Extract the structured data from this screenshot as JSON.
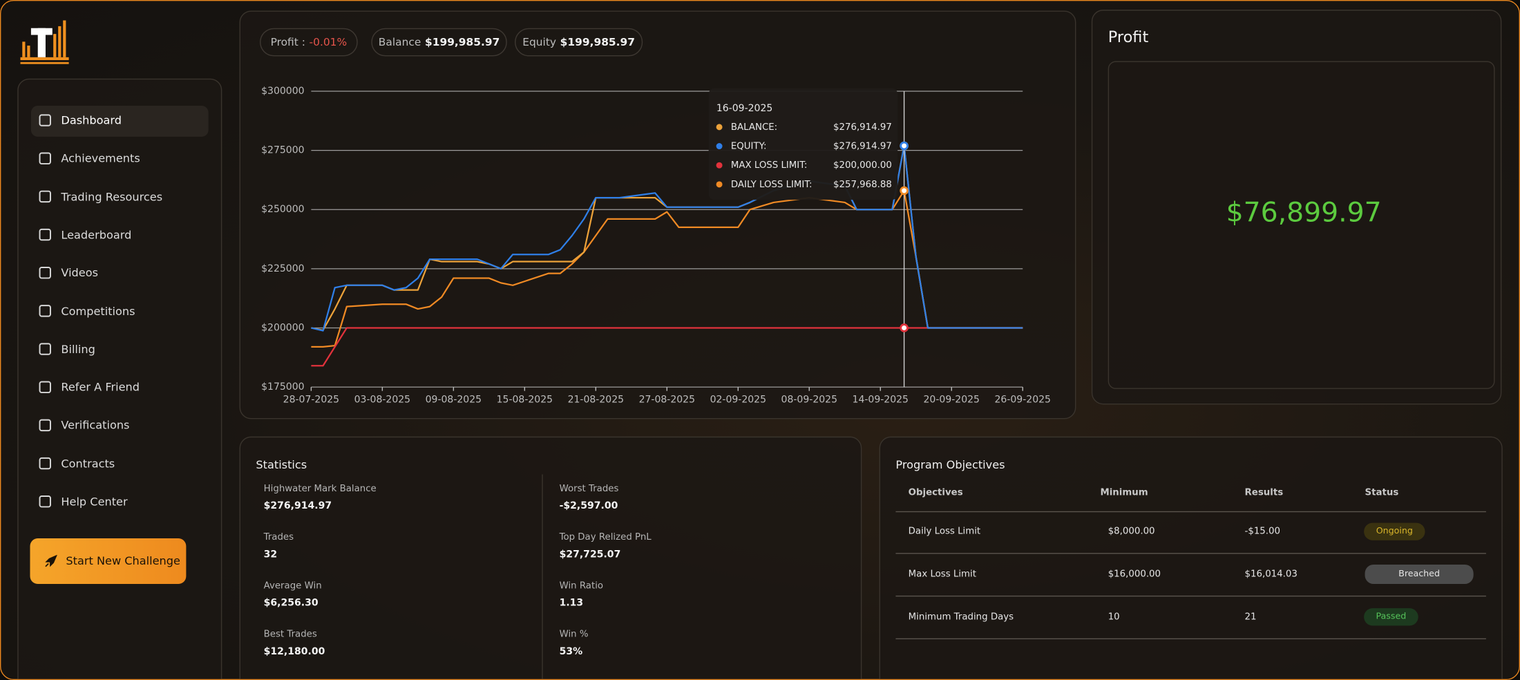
{
  "sidebar": {
    "nav": [
      "Dashboard",
      "Achievements",
      "Trading Resources",
      "Leaderboard",
      "Videos",
      "Competitions",
      "Billing",
      "Refer A Friend",
      "Verifications",
      "Contracts",
      "Help Center"
    ],
    "cta": "Start New Challenge"
  },
  "summary": [
    {
      "label": "Profit :",
      "value": "-0.01%"
    },
    {
      "label": "Balance",
      "value": "$199,985.97"
    },
    {
      "label": "Equity",
      "value": "$199,985.97"
    }
  ],
  "chart_data": {
    "type": "line",
    "x": [
      "28-07-2025",
      "29-07-2025",
      "30-07-2025",
      "31-07-2025",
      "03-08-2025",
      "04-08-2025",
      "05-08-2025",
      "06-08-2025",
      "07-08-2025",
      "08-08-2025",
      "09-08-2025",
      "11-08-2025",
      "12-08-2025",
      "13-08-2025",
      "14-08-2025",
      "17-08-2025",
      "18-08-2025",
      "19-08-2025",
      "20-08-2025",
      "21-08-2025",
      "22-08-2025",
      "23-08-2025",
      "26-08-2025",
      "27-08-2025",
      "28-08-2025",
      "02-09-2025",
      "03-09-2025",
      "05-09-2025",
      "08-09-2025",
      "11-09-2025",
      "12-09-2025",
      "15-09-2025",
      "16-09-2025",
      "17-09-2025",
      "18-09-2025",
      "26-09-2025"
    ],
    "series": [
      {
        "name": "DAILY LOSS LIMIT:",
        "color": "#f08a24",
        "values": [
          192000,
          192000,
          192500,
          209000,
          210000,
          210000,
          210000,
          208000,
          209000,
          213000,
          221000,
          221000,
          221000,
          219000,
          218000,
          223000,
          223000,
          227000,
          232000,
          239000,
          246000,
          246000,
          246000,
          249000,
          242500,
          242500,
          250000,
          253000,
          255000,
          253000,
          250000,
          250000,
          257968.88,
          230000,
          200000,
          200000
        ]
      },
      {
        "name": "MAX LOSS LIMIT:",
        "color": "#e2323c",
        "values": [
          184000,
          184000,
          192000,
          200000,
          200000,
          200000,
          200000,
          200000,
          200000,
          200000,
          200000,
          200000,
          200000,
          200000,
          200000,
          200000,
          200000,
          200000,
          200000,
          200000,
          200000,
          200000,
          200000,
          200000,
          200000,
          200000,
          200000,
          200000,
          200000,
          200000,
          200000,
          200000,
          200000,
          200000,
          200000,
          200000
        ]
      },
      {
        "name": "BALANCE:",
        "color": "#eca23a",
        "values": [
          200000,
          199000,
          208000,
          218000,
          218000,
          216000,
          216000,
          216000,
          229000,
          228000,
          228000,
          228000,
          227000,
          225000,
          228000,
          228000,
          228000,
          228000,
          232000,
          255000,
          255000,
          255000,
          255000,
          251000,
          251000,
          251000,
          253000,
          258000,
          262000,
          260000,
          250000,
          250000,
          276914.97,
          230000,
          200000,
          200000
        ]
      },
      {
        "name": "EQUITY:",
        "color": "#2f7fe8",
        "values": [
          200000,
          198800,
          217000,
          218000,
          218000,
          216000,
          217000,
          221000,
          229000,
          229000,
          229000,
          229000,
          227000,
          225000,
          231000,
          231000,
          233000,
          239000,
          246000,
          255000,
          255000,
          255000,
          257000,
          251000,
          251000,
          251000,
          253000,
          258000,
          262000,
          260000,
          250000,
          250000,
          276914.97,
          230000,
          200000,
          200000
        ]
      }
    ],
    "xlim": [
      "28-07-2025",
      "26-09-2025"
    ],
    "xticks": [
      "28-07-2025",
      "03-08-2025",
      "09-08-2025",
      "15-08-2025",
      "21-08-2025",
      "27-08-2025",
      "02-09-2025",
      "08-09-2025",
      "14-09-2025",
      "20-09-2025",
      "26-09-2025"
    ],
    "ylim": [
      175000,
      300000
    ],
    "yticks": [
      {
        "value": 175000,
        "label": "$175000"
      },
      {
        "value": 200000,
        "label": "$200000"
      },
      {
        "value": 225000,
        "label": "$225000"
      },
      {
        "value": 250000,
        "label": "$250000"
      },
      {
        "value": 275000,
        "label": "$275000"
      },
      {
        "value": 300000,
        "label": "$300000"
      }
    ],
    "grid": true,
    "tooltip": {
      "title": "16-09-2025",
      "value_labels": [
        "$257,968.88",
        "$200,000.00",
        "$276,914.97",
        "$276,914.97"
      ]
    }
  },
  "profit": {
    "title": "Profit",
    "value": "$76,899.97"
  },
  "statistics": {
    "title": "Statistics",
    "left": [
      {
        "label": "Highwater Mark Balance",
        "value": "$276,914.97"
      },
      {
        "label": "Trades",
        "value": "32"
      },
      {
        "label": "Average Win",
        "value": "$6,256.30"
      },
      {
        "label": "Best Trades",
        "value": "$12,180.00"
      }
    ],
    "right": [
      {
        "label": "Worst Trades",
        "value": "-$2,597.00"
      },
      {
        "label": "Top Day Relized PnL",
        "value": "$27,725.07"
      },
      {
        "label": "Win Ratio",
        "value": "1.13"
      },
      {
        "label": "Win %",
        "value": "53%"
      }
    ]
  },
  "objectives": {
    "title": "Program Objectives",
    "columns": [
      "Objectives",
      "Minimum",
      "Results",
      "Status"
    ],
    "rows": [
      [
        "Daily Loss Limit",
        "$8,000.00",
        "-$15.00",
        "Ongoing"
      ],
      [
        "Max Loss Limit",
        "$16,000.00",
        "$16,014.03",
        "Breached"
      ],
      [
        "Minimum Trading Days",
        "10",
        "21",
        "Passed"
      ]
    ]
  }
}
